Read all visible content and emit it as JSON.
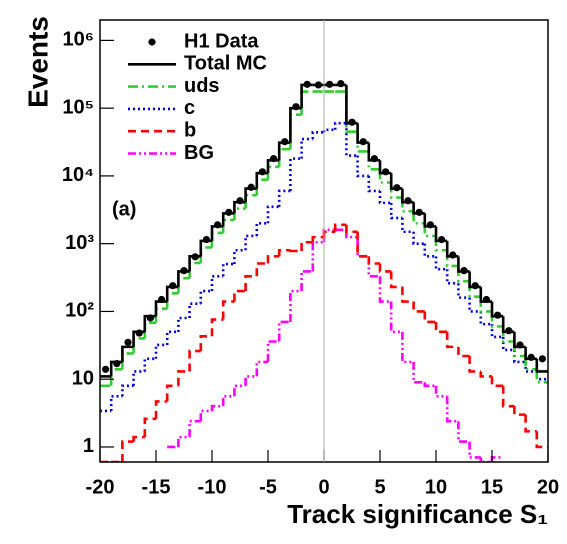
{
  "chart_data": {
    "type": "histogram",
    "ylabel": "Events",
    "xlabel": "Track significance S₁",
    "annotation": "(a)",
    "log_y": true,
    "legend": "upper left",
    "bins": [
      -20,
      -19,
      -18,
      -17,
      -16,
      -15,
      -14,
      -13,
      -12,
      -11,
      -10,
      -9,
      -8,
      -7,
      -6,
      -5,
      -4,
      -3,
      -2,
      -1,
      0,
      1,
      2,
      3,
      4,
      5,
      6,
      7,
      8,
      9,
      10,
      11,
      12,
      13,
      14,
      15,
      16,
      17,
      18,
      19,
      20
    ],
    "xlim": [
      -20,
      20
    ],
    "xticks": [
      -20,
      -15,
      -10,
      -5,
      0,
      5,
      10,
      15,
      20
    ],
    "ylim": [
      0.6,
      2000000
    ],
    "yticks": [
      1,
      {
        "value": 10,
        "label": "10"
      },
      {
        "value": 100,
        "label": "10²"
      },
      {
        "value": 1000,
        "label": "10³"
      },
      {
        "value": 10000,
        "label": "10⁴"
      },
      {
        "value": 100000,
        "label": "10⁵"
      },
      {
        "value": 1000000,
        "label": "10⁶"
      }
    ],
    "series": [
      {
        "name": "H1 Data",
        "style": "points",
        "color": "#000000",
        "values": [
          14,
          17,
          35,
          48,
          80,
          150,
          240,
          400,
          640,
          1150,
          1900,
          2900,
          4300,
          6800,
          11500,
          18000,
          32000,
          105000,
          225000,
          220000,
          225000,
          230000,
          62000,
          32000,
          18000,
          11500,
          6700,
          4300,
          2900,
          1900,
          1150,
          680,
          400,
          240,
          150,
          88,
          52,
          32,
          21,
          20
        ]
      },
      {
        "name": "Total MC",
        "style": "solid",
        "color": "#000000",
        "values": [
          11,
          18,
          30,
          50,
          85,
          140,
          230,
          390,
          650,
          1100,
          1800,
          2800,
          4100,
          6500,
          11000,
          17000,
          31000,
          100000,
          220000,
          220000,
          220000,
          220000,
          60000,
          31000,
          17000,
          11000,
          6500,
          4100,
          2800,
          1800,
          1100,
          650,
          390,
          230,
          140,
          85,
          50,
          30,
          20,
          13
        ]
      },
      {
        "name": "uds",
        "style": "dashdot",
        "color": "#33cc33",
        "values": [
          8,
          14,
          24,
          40,
          68,
          110,
          185,
          310,
          520,
          880,
          1440,
          2240,
          3300,
          5200,
          8800,
          13600,
          24800,
          80000,
          176000,
          176000,
          176000,
          176000,
          45000,
          23000,
          12500,
          8000,
          4800,
          3000,
          2000,
          1300,
          800,
          470,
          280,
          165,
          100,
          60,
          36,
          22,
          14,
          9
        ]
      },
      {
        "name": "c",
        "style": "dotted",
        "color": "#0000dd",
        "values": [
          3.4,
          5.6,
          8,
          13,
          20,
          32,
          50,
          80,
          130,
          200,
          330,
          500,
          800,
          1300,
          2000,
          3500,
          6000,
          18000,
          35000,
          44000,
          48000,
          60000,
          20000,
          10000,
          6000,
          4000,
          2400,
          1500,
          1000,
          650,
          420,
          260,
          160,
          100,
          65,
          42,
          27,
          18,
          13,
          10
        ]
      },
      {
        "name": "b",
        "style": "dashed",
        "color": "#ff0000",
        "values": [
          0.6,
          0.6,
          1.2,
          1.4,
          2.6,
          4.7,
          8,
          13,
          26,
          43,
          76,
          140,
          200,
          330,
          510,
          650,
          800,
          780,
          1050,
          1250,
          1500,
          1900,
          1500,
          650,
          510,
          390,
          230,
          140,
          100,
          70,
          50,
          30,
          22,
          13,
          11,
          8,
          4,
          3,
          1.7,
          1
        ]
      },
      {
        "name": "BG",
        "style": "dashdotdot",
        "color": "#ff00ff",
        "values": [
          null,
          null,
          null,
          null,
          null,
          null,
          1,
          1.4,
          2.4,
          3.4,
          4,
          5.6,
          8,
          11,
          18,
          36,
          70,
          200,
          390,
          1050,
          1600,
          1600,
          1250,
          650,
          330,
          140,
          50,
          18,
          9,
          8,
          5.6,
          2.4,
          1.2,
          0.7,
          0.6,
          0.7,
          null,
          null,
          null,
          null
        ]
      }
    ]
  }
}
